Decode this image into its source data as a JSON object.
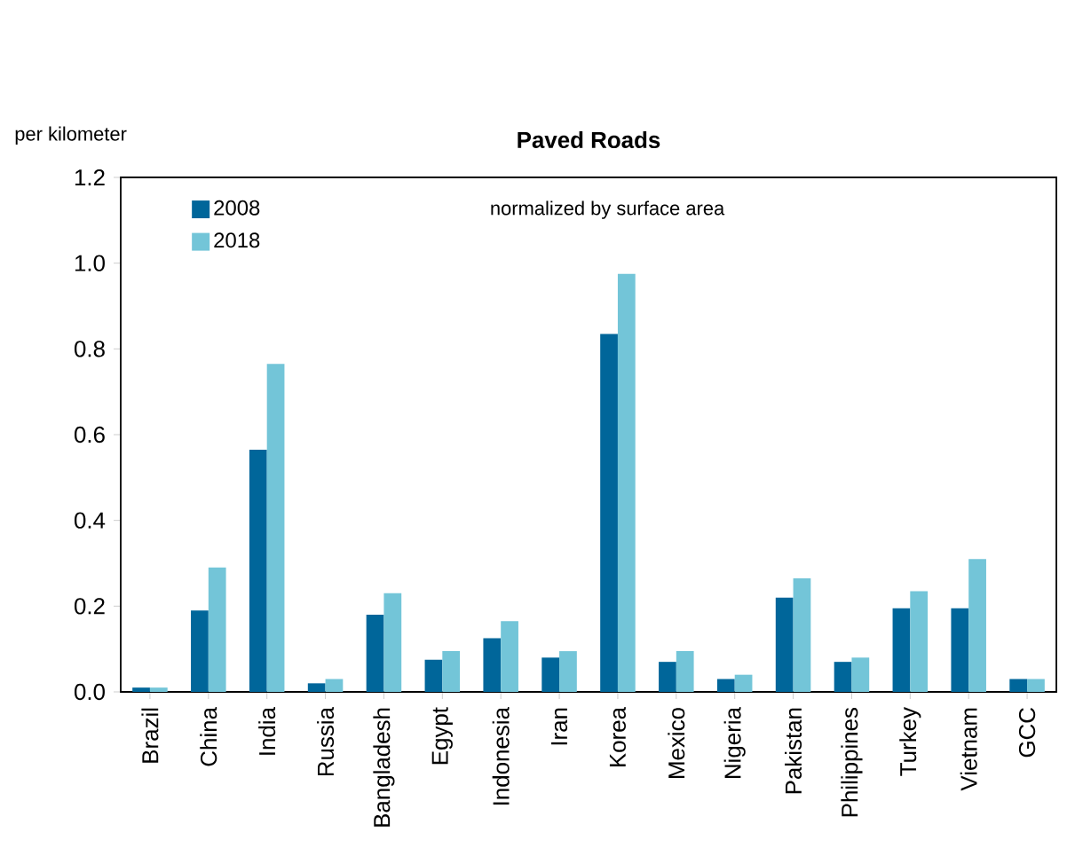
{
  "chart_data": {
    "type": "bar",
    "title": "Paved Roads",
    "ylabel": "per kilometer",
    "annotations": [
      "normalized by surface area"
    ],
    "categories": [
      "Brazil",
      "China",
      "India",
      "Russia",
      "Bangladesh",
      "Egypt",
      "Indonesia",
      "Iran",
      "Korea",
      "Mexico",
      "Nigeria",
      "Pakistan",
      "Philippines",
      "Turkey",
      "Vietnam",
      "GCC"
    ],
    "series": [
      {
        "name": "2008",
        "color": "#00669a",
        "values": [
          0.01,
          0.19,
          0.565,
          0.02,
          0.18,
          0.075,
          0.125,
          0.08,
          0.835,
          0.07,
          0.03,
          0.22,
          0.07,
          0.195,
          0.195,
          0.03
        ]
      },
      {
        "name": "2018",
        "color": "#73c5d8",
        "values": [
          0.01,
          0.29,
          0.765,
          0.03,
          0.23,
          0.095,
          0.165,
          0.095,
          0.975,
          0.095,
          0.04,
          0.265,
          0.08,
          0.235,
          0.31,
          0.03
        ]
      }
    ],
    "ylim": [
      0,
      1.2
    ],
    "yticks": [
      {
        "value": 0,
        "label": "0.0"
      },
      {
        "value": 0.2,
        "label": "0.2"
      },
      {
        "value": 0.4,
        "label": "0.4"
      },
      {
        "value": 0.6,
        "label": "0.6"
      },
      {
        "value": 0.8,
        "label": "0.8"
      },
      {
        "value": 1.0,
        "label": "1.0"
      },
      {
        "value": 1.2,
        "label": "1.2"
      }
    ],
    "grid": false,
    "legend": "top left"
  }
}
